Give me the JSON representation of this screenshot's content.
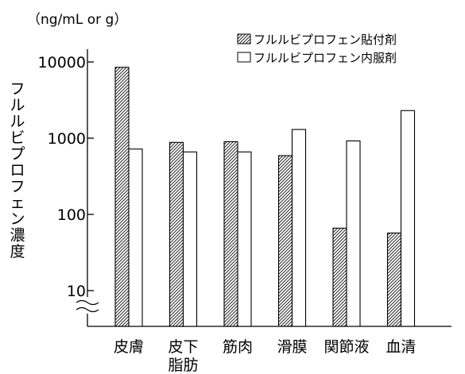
{
  "chart_data": {
    "type": "bar",
    "unit_label": "（ng/mL or g）",
    "ylabel": "フルルビプロフェン濃度",
    "yscale": "log",
    "ylim": [
      3,
      20000
    ],
    "yticks": [
      {
        "value": 10,
        "label": "10"
      },
      {
        "value": 100,
        "label": "100"
      },
      {
        "value": 1000,
        "label": "1000"
      },
      {
        "value": 10000,
        "label": "10000"
      }
    ],
    "axis_break": true,
    "grid": false,
    "legend_position": "top-right",
    "categories": [
      {
        "lines": [
          "皮膚"
        ]
      },
      {
        "lines": [
          "皮下",
          "脂肪"
        ]
      },
      {
        "lines": [
          "筋肉"
        ]
      },
      {
        "lines": [
          "滑膜"
        ]
      },
      {
        "lines": [
          "関節液"
        ]
      },
      {
        "lines": [
          "血清"
        ]
      }
    ],
    "series": [
      {
        "name": "フルルビプロフェン貼付剤",
        "fill": "hatched",
        "values": [
          8500,
          880,
          900,
          590,
          66,
          57
        ]
      },
      {
        "name": "フルルビプロフェン内服剤",
        "fill": "white",
        "values": [
          720,
          660,
          660,
          1300,
          920,
          2300
        ]
      }
    ],
    "colors": {
      "line": "#000000",
      "background": "#ffffff"
    }
  }
}
